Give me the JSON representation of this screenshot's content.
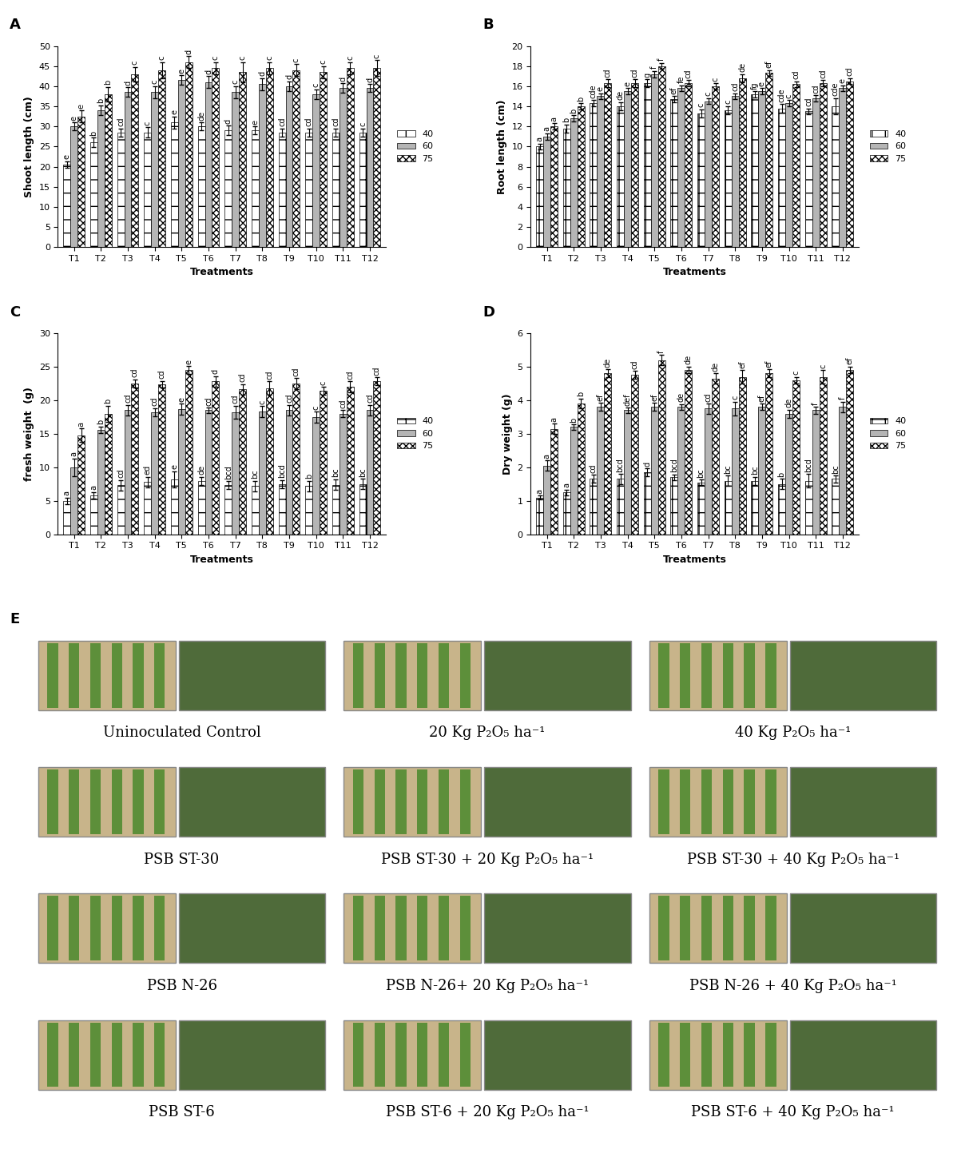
{
  "chart_data": [
    {
      "type": "bar",
      "title": "A",
      "x_label": "Treatments",
      "y_label": "Shoot length (cm)",
      "categories": [
        "T1",
        "T2",
        "T3",
        "T4",
        "T5",
        "T6",
        "T7",
        "T8",
        "T9",
        "T10",
        "T11",
        "T12"
      ],
      "ylim": [
        0,
        50
      ],
      "yticks": [
        0,
        5,
        10,
        15,
        20,
        25,
        30,
        35,
        40,
        45,
        50
      ],
      "legend": "right",
      "series": [
        {
          "name": "40",
          "color": "#ffffff",
          "values": [
            20.5,
            26,
            28.5,
            28.5,
            31,
            30,
            29,
            29,
            28.5,
            28.5,
            28.5,
            28.5
          ],
          "errors": [
            0.8,
            1.2,
            1.0,
            1.3,
            1.5,
            1.0,
            1.2,
            1.0,
            1.0,
            1.0,
            1.0,
            1.0
          ],
          "letters": [
            "e",
            "b",
            "cd",
            "c",
            "e",
            "de",
            "d",
            "e",
            "cd",
            "cd",
            "cd",
            "c"
          ]
        },
        {
          "name": "60",
          "color": "#b5b5b5",
          "values": [
            30,
            34,
            38.5,
            38.5,
            41.5,
            41,
            38.5,
            40.5,
            40,
            38,
            39.5,
            39.5
          ],
          "errors": [
            1.0,
            1.2,
            1.2,
            1.5,
            1.2,
            1.5,
            1.5,
            1.5,
            1.2,
            1.2,
            1.2,
            1.0
          ],
          "letters": [
            "e",
            "b",
            "d",
            "c",
            "e",
            "d",
            "c",
            "d",
            "d",
            "c",
            "d",
            "d"
          ]
        },
        {
          "name": "75",
          "color": "#ffffff",
          "values": [
            32.5,
            38,
            43,
            44,
            46,
            44.5,
            43.5,
            44.5,
            44,
            43.5,
            44.5,
            44.5
          ],
          "errors": [
            1.5,
            1.8,
            1.8,
            2.0,
            1.5,
            1.5,
            2.5,
            1.5,
            1.5,
            1.5,
            1.5,
            2.0
          ],
          "letters": [
            "e",
            "b",
            "c",
            "c",
            "d",
            "c",
            "c",
            "c",
            "c",
            "c",
            "c",
            "c"
          ]
        }
      ]
    },
    {
      "type": "bar",
      "title": "B",
      "x_label": "Treatments",
      "y_label": "Root length (cm)",
      "categories": [
        "T1",
        "T2",
        "T3",
        "T4",
        "T5",
        "T6",
        "T7",
        "T8",
        "T9",
        "T10",
        "T11",
        "T12"
      ],
      "ylim": [
        0,
        20
      ],
      "yticks": [
        0,
        2,
        4,
        6,
        8,
        10,
        12,
        14,
        16,
        18,
        20
      ],
      "legend": "right",
      "series": [
        {
          "name": "40",
          "color": "#ffffff",
          "values": [
            10,
            11.8,
            14.3,
            14,
            16.3,
            14.7,
            13.3,
            13.6,
            15.2,
            13.8,
            13.5,
            14
          ],
          "errors": [
            0.3,
            0.4,
            0.3,
            0.4,
            0.4,
            0.3,
            0.4,
            0.4,
            0.3,
            0.4,
            0.3,
            0.8
          ],
          "letters": [
            "a",
            "b",
            "cde",
            "de",
            "g",
            "ef",
            "c",
            "c",
            "fg",
            "cde",
            "cd",
            "cde"
          ]
        },
        {
          "name": "60",
          "color": "#b5b5b5",
          "values": [
            11,
            12.8,
            15,
            15.5,
            17.2,
            15.8,
            14.5,
            15,
            15.5,
            14.3,
            14.8,
            15.8
          ],
          "errors": [
            0.3,
            0.3,
            0.3,
            0.3,
            0.3,
            0.3,
            0.3,
            0.3,
            0.3,
            0.3,
            0.3,
            0.3
          ],
          "letters": [
            "a",
            "b",
            "e",
            "e",
            "f",
            "fe",
            "c",
            "cd",
            "e",
            "c",
            "cd",
            "e"
          ]
        },
        {
          "name": "75",
          "color": "#ffffff",
          "values": [
            12,
            14,
            16.3,
            16.3,
            18,
            16.3,
            16,
            16.8,
            17.3,
            16.2,
            16.3,
            16.5
          ],
          "errors": [
            0.3,
            0.3,
            0.4,
            0.4,
            0.3,
            0.3,
            0.3,
            0.4,
            0.3,
            0.3,
            0.3,
            0.3
          ],
          "letters": [
            "a",
            "b",
            "cd",
            "cd",
            "f",
            "cd",
            "c",
            "de",
            "ef",
            "cd",
            "cd",
            "cd"
          ]
        }
      ]
    },
    {
      "type": "bar",
      "title": "C",
      "x_label": "Treatments",
      "y_label": "fresh weight  (g)",
      "categories": [
        "T1",
        "T2",
        "T3",
        "T4",
        "T5",
        "T6",
        "T7",
        "T8",
        "T9",
        "T10",
        "T11",
        "T12"
      ],
      "ylim": [
        0,
        30
      ],
      "yticks": [
        0,
        5,
        10,
        15,
        20,
        25,
        30
      ],
      "legend": "right",
      "series": [
        {
          "name": "40",
          "color": "#ffffff",
          "values": [
            5,
            5.8,
            7.3,
            7.8,
            8.2,
            8,
            7.3,
            7.2,
            7.5,
            7.2,
            7.4,
            7.5
          ],
          "errors": [
            0.5,
            0.5,
            0.8,
            0.8,
            1.2,
            0.6,
            0.6,
            0.8,
            0.6,
            0.8,
            0.8,
            0.8
          ],
          "letters": [
            "a",
            "a",
            "cd",
            "ed",
            "e",
            "de",
            "bcd",
            "bc",
            "bcd",
            "b",
            "bc",
            "bc"
          ]
        },
        {
          "name": "60",
          "color": "#b5b5b5",
          "values": [
            10,
            15.6,
            18.5,
            18.2,
            18.7,
            18.5,
            18.2,
            18.3,
            18.5,
            17.5,
            18,
            18.5
          ],
          "errors": [
            1.3,
            0.5,
            0.8,
            0.6,
            0.8,
            0.4,
            1.0,
            0.8,
            0.8,
            0.8,
            0.5,
            0.8
          ],
          "letters": [
            "a",
            "b",
            "cd",
            "cd",
            "e",
            "cd",
            "cd",
            "c",
            "cd",
            "c",
            "cd",
            "cd"
          ]
        },
        {
          "name": "75",
          "color": "#ffffff",
          "values": [
            14.8,
            18,
            22.5,
            22.4,
            24.5,
            22.8,
            21.6,
            21.8,
            22.5,
            21.4,
            22,
            22.8
          ],
          "errors": [
            1.0,
            1.2,
            0.6,
            0.5,
            0.6,
            0.8,
            0.8,
            1.0,
            0.8,
            0.6,
            0.8,
            0.6
          ],
          "letters": [
            "a",
            "b",
            "cd",
            "cd",
            "e",
            "d",
            "cd",
            "cd",
            "cd",
            "c",
            "cd",
            "cd"
          ]
        }
      ]
    },
    {
      "type": "bar",
      "title": "D",
      "x_label": "Treatments",
      "y_label": "Dry weight (g)",
      "categories": [
        "T1",
        "T2",
        "T3",
        "T4",
        "T5",
        "T6",
        "T7",
        "T8",
        "T9",
        "T10",
        "T11",
        "T12"
      ],
      "ylim": [
        0,
        6
      ],
      "yticks": [
        0,
        1,
        2,
        3,
        4,
        5,
        6
      ],
      "legend": "right",
      "series": [
        {
          "name": "40",
          "color": "#ffffff",
          "values": [
            1.1,
            1.25,
            1.65,
            1.65,
            1.85,
            1.7,
            1.55,
            1.6,
            1.6,
            1.5,
            1.6,
            1.65
          ],
          "errors": [
            0.05,
            0.08,
            0.12,
            0.15,
            0.12,
            0.08,
            0.08,
            0.15,
            0.12,
            0.15,
            0.2,
            0.1
          ],
          "letters": [
            "a",
            "a",
            "cd",
            "bcd",
            "d",
            "bcd",
            "bc",
            "bc",
            "bc",
            "b",
            "bcd",
            "bc"
          ]
        },
        {
          "name": "60",
          "color": "#b5b5b5",
          "values": [
            2.05,
            3.2,
            3.8,
            3.7,
            3.8,
            3.8,
            3.75,
            3.75,
            3.8,
            3.6,
            3.7,
            3.8
          ],
          "errors": [
            0.15,
            0.08,
            0.12,
            0.08,
            0.12,
            0.08,
            0.15,
            0.2,
            0.1,
            0.12,
            0.1,
            0.15
          ],
          "letters": [
            "a",
            "b",
            "ef",
            "def",
            "ef",
            "de",
            "cd",
            "c",
            "ef",
            "de",
            "f",
            "f"
          ]
        },
        {
          "name": "75",
          "color": "#ffffff",
          "values": [
            3.15,
            3.9,
            4.8,
            4.75,
            5.2,
            4.9,
            4.65,
            4.7,
            4.8,
            4.6,
            4.7,
            4.9
          ],
          "errors": [
            0.15,
            0.15,
            0.12,
            0.12,
            0.15,
            0.1,
            0.15,
            0.2,
            0.12,
            0.1,
            0.2,
            0.1
          ],
          "letters": [
            "a",
            "b",
            "de",
            "cd",
            "f",
            "de",
            "de",
            "ef",
            "ef",
            "c",
            "c",
            "ef"
          ]
        }
      ]
    }
  ],
  "photo_panel": {
    "title": "E",
    "captions": [
      [
        "Uninoculated Control",
        "20 Kg P₂O₅ ha⁻¹",
        "40 Kg P₂O₅ ha⁻¹"
      ],
      [
        "PSB ST-30",
        "PSB ST-30 + 20 Kg P₂O₅ ha⁻¹",
        "PSB ST-30 + 40 Kg P₂O₅ ha⁻¹"
      ],
      [
        "PSB N-26",
        "PSB N-26+ 20 Kg P₂O₅ ha⁻¹",
        "PSB N-26 + 40 Kg P₂O₅ ha⁻¹"
      ],
      [
        "PSB ST-6",
        "PSB ST-6 + 20 Kg P₂O₅ ha⁻¹",
        "PSB ST-6 + 40 Kg P₂O₅ ha⁻¹"
      ]
    ]
  }
}
